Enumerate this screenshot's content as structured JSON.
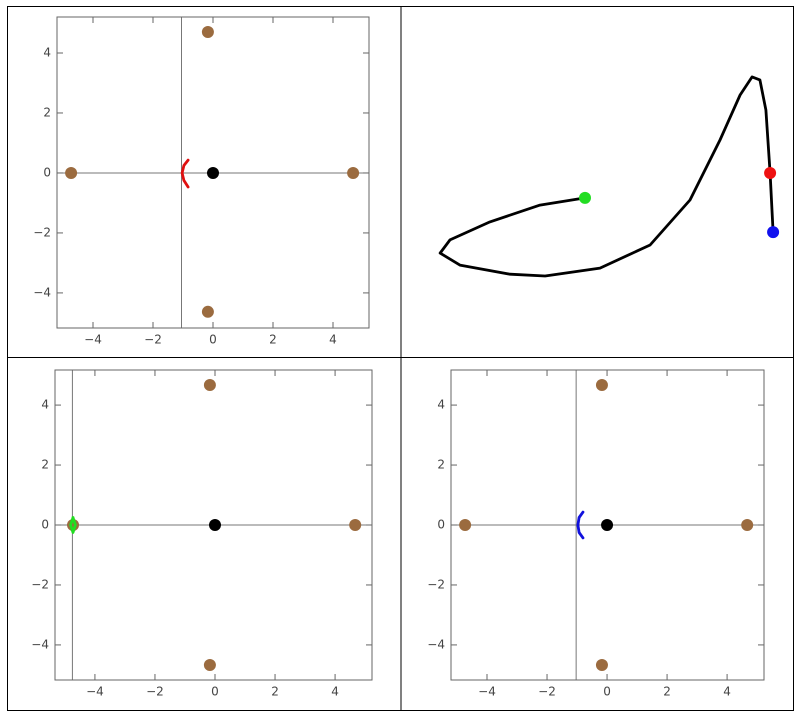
{
  "chart_data": [
    {
      "type": "scatter",
      "frame": true,
      "xlim": [
        -5.2,
        5.2
      ],
      "ylim": [
        -5.17,
        5.2
      ],
      "xticks": [
        {
          "value": -4,
          "label": "−4"
        },
        {
          "value": -2,
          "label": "−2"
        },
        0,
        2,
        4
      ],
      "yticks": [
        {
          "value": -4,
          "label": "−4"
        },
        {
          "value": -2,
          "label": "−2"
        },
        0,
        2,
        4
      ],
      "axes_origin": [
        -1.05,
        0
      ],
      "series": [
        {
          "mode": "markers",
          "color": "#9b6b3f",
          "x": [
            -4.73,
            4.67,
            -0.17,
            -0.17
          ],
          "values": [
            0,
            0,
            4.7,
            -4.63
          ]
        },
        {
          "mode": "markers",
          "color": "#000000",
          "x": [
            0
          ],
          "values": [
            0
          ]
        },
        {
          "mode": "line",
          "color": "#e01010",
          "x": [
            -0.83,
            -0.97,
            -1.03,
            -0.97,
            -0.83
          ],
          "values": [
            0.43,
            0.25,
            0,
            -0.25,
            -0.47
          ]
        }
      ]
    },
    {
      "type": "line",
      "frame": false,
      "xlim": [
        -6.6,
        6.5
      ],
      "ylim": [
        -6.13,
        5.53
      ],
      "series": [
        {
          "mode": "line",
          "color": "#000000",
          "x": [
            -0.5,
            -2.0,
            -3.67,
            -5.0,
            -5.33,
            -4.67,
            -3.0,
            -1.83,
            0,
            1.67,
            3.0,
            4.0,
            4.67,
            5.07,
            5.33,
            5.53,
            5.67,
            5.77
          ],
          "values": [
            -0.83,
            -1.07,
            -1.63,
            -2.23,
            -2.67,
            -3.07,
            -3.37,
            -3.43,
            -3.17,
            -2.4,
            -0.9,
            1.1,
            2.6,
            3.2,
            3.1,
            2.1,
            0,
            -1.97
          ]
        },
        {
          "mode": "markers",
          "color": "#22dd22",
          "x": [
            -0.5
          ],
          "values": [
            -0.83
          ]
        },
        {
          "mode": "markers",
          "color": "#ee1111",
          "x": [
            5.67
          ],
          "values": [
            0
          ]
        },
        {
          "mode": "markers",
          "color": "#1111ee",
          "x": [
            5.77
          ],
          "values": [
            -1.97
          ]
        }
      ]
    },
    {
      "type": "scatter",
      "frame": true,
      "xlim": [
        -5.33,
        5.23
      ],
      "ylim": [
        -5.17,
        5.17
      ],
      "xticks": [
        {
          "value": -4,
          "label": "−4"
        },
        {
          "value": -2,
          "label": "−2"
        },
        0,
        2,
        4
      ],
      "yticks": [
        {
          "value": -4,
          "label": "−4"
        },
        {
          "value": -2,
          "label": "−2"
        },
        0,
        2,
        4
      ],
      "axes_origin": [
        -4.75,
        0
      ],
      "series": [
        {
          "mode": "markers",
          "color": "#9b6b3f",
          "x": [
            -4.73,
            4.67,
            -0.17,
            -0.17
          ],
          "values": [
            0,
            0,
            4.67,
            -4.67
          ]
        },
        {
          "mode": "markers",
          "color": "#000000",
          "x": [
            0
          ],
          "values": [
            0
          ]
        },
        {
          "mode": "line",
          "color": "#22dd22",
          "x": [
            -4.73,
            -4.65,
            -4.73,
            -4.81,
            -4.73
          ],
          "values": [
            0.25,
            0,
            -0.25,
            0,
            0.25
          ]
        }
      ]
    },
    {
      "type": "scatter",
      "frame": true,
      "xlim": [
        -5.2,
        5.23
      ],
      "ylim": [
        -5.17,
        5.17
      ],
      "xticks": [
        {
          "value": -4,
          "label": "−4"
        },
        {
          "value": -2,
          "label": "−2"
        },
        0,
        2,
        4
      ],
      "yticks": [
        {
          "value": -4,
          "label": "−4"
        },
        {
          "value": -2,
          "label": "−2"
        },
        0,
        2,
        4
      ],
      "axes_origin": [
        -1.03,
        0
      ],
      "series": [
        {
          "mode": "markers",
          "color": "#9b6b3f",
          "x": [
            -4.73,
            4.67,
            -0.17,
            -0.17
          ],
          "values": [
            0,
            0,
            4.67,
            -4.67
          ]
        },
        {
          "mode": "markers",
          "color": "#000000",
          "x": [
            0
          ],
          "values": [
            0
          ]
        },
        {
          "mode": "line",
          "color": "#1111dd",
          "x": [
            -0.8,
            -0.93,
            -0.97,
            -0.93,
            -0.8
          ],
          "values": [
            0.43,
            0.25,
            0,
            -0.25,
            -0.43
          ]
        }
      ]
    }
  ]
}
